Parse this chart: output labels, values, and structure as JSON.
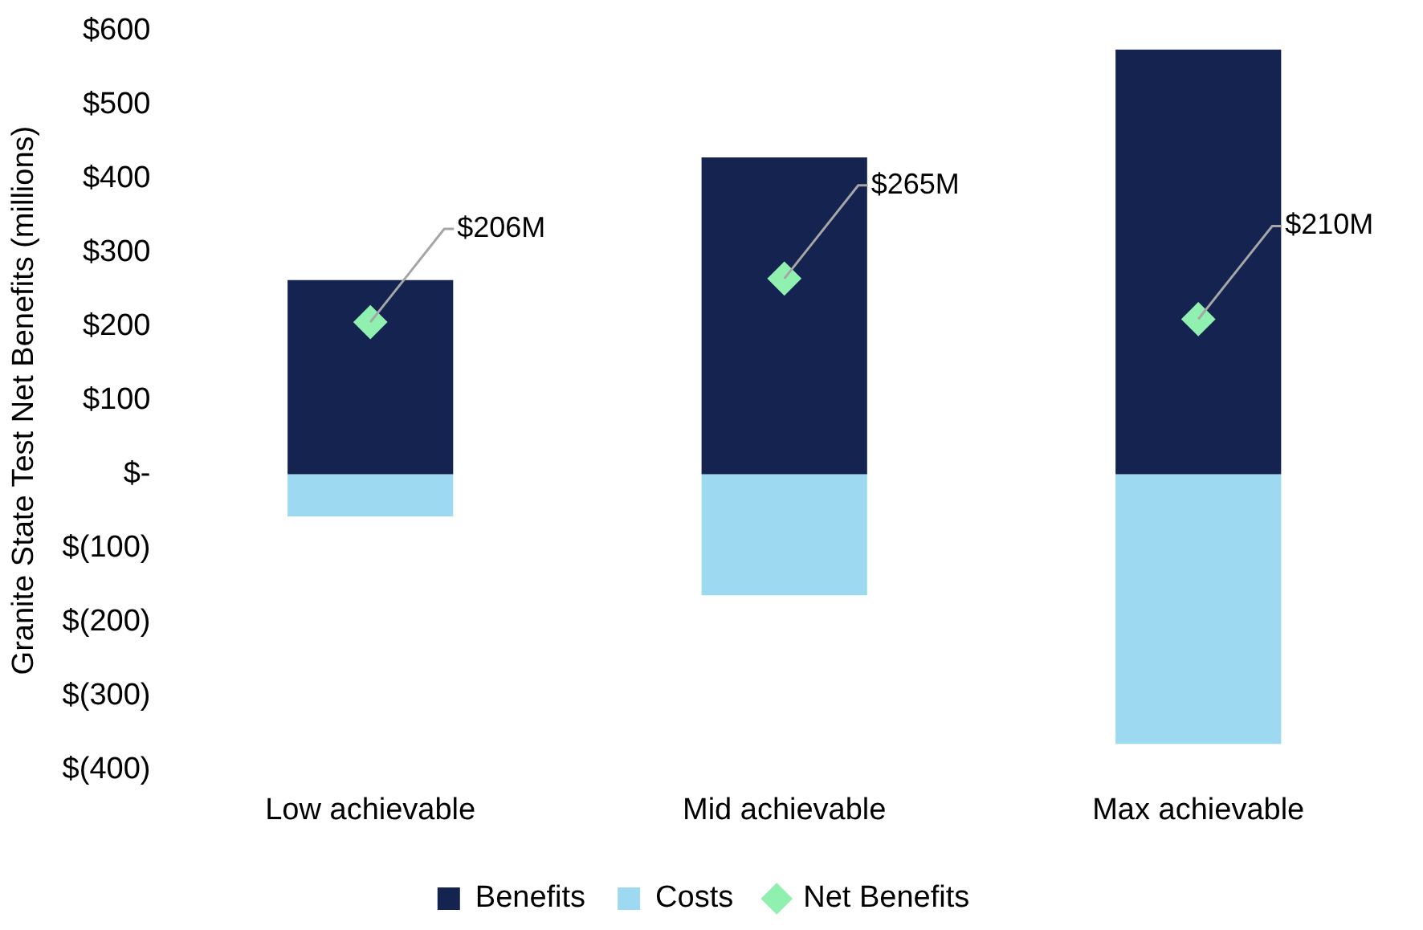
{
  "chart_data": {
    "type": "bar",
    "stacked": true,
    "ylabel": "Granite State Test Net Benefits (millions)",
    "categories": [
      "Low achievable",
      "Mid achievable",
      "Max achievable"
    ],
    "series": [
      {
        "name": "Benefits",
        "color": "#142350",
        "values": [
          263,
          429,
          575
        ]
      },
      {
        "name": "Costs",
        "color": "#9dd9f0",
        "values": [
          -57,
          -164,
          -365
        ]
      },
      {
        "name": "Net Benefits",
        "type": "scatter",
        "color": "#8ff0b0",
        "x": [
          "Low achievable",
          "Mid achievable",
          "Max achievable"
        ],
        "values": [
          206,
          265,
          210
        ],
        "value_labels": [
          "$206M",
          "$265M",
          "$210M"
        ]
      }
    ],
    "ylim": [
      -400,
      600
    ],
    "yticks": [
      {
        "value": -400,
        "label": "$(400)"
      },
      {
        "value": -300,
        "label": "$(300)"
      },
      {
        "value": -200,
        "label": "$(200)"
      },
      {
        "value": -100,
        "label": "$(100)"
      },
      {
        "value": 0,
        "label": "$-"
      },
      {
        "value": 100,
        "label": "$100"
      },
      {
        "value": 200,
        "label": "$200"
      },
      {
        "value": 300,
        "label": "$300"
      },
      {
        "value": 400,
        "label": "$400"
      },
      {
        "value": 500,
        "label": "$500"
      },
      {
        "value": 600,
        "label": "$600"
      }
    ],
    "grid": false,
    "legend": "bottom",
    "marker": "diamond"
  }
}
